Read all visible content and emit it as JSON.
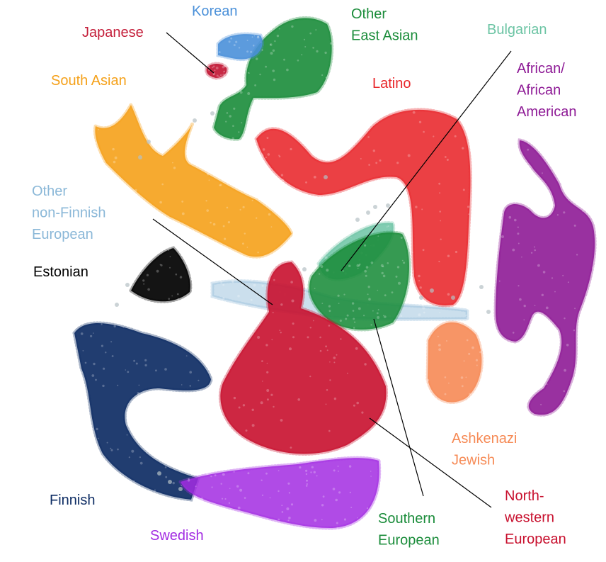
{
  "chart_data": {
    "type": "scatter",
    "title": "",
    "xlabel": "",
    "ylabel": "",
    "axes": "none",
    "grid": false,
    "legend": "none",
    "series": [
      {
        "name": "Korean",
        "lines": [
          "Korean"
        ],
        "color": "#4a90d9"
      },
      {
        "name": "Japanese",
        "lines": [
          "Japanese"
        ],
        "color": "#c41e3a"
      },
      {
        "name": "Other East Asian",
        "lines": [
          "Other",
          "East Asian"
        ],
        "color": "#1a8c3a"
      },
      {
        "name": "Bulgarian",
        "lines": [
          "Bulgarian"
        ],
        "color": "#6cc4a4"
      },
      {
        "name": "South Asian",
        "lines": [
          "South Asian"
        ],
        "color": "#f5a11a"
      },
      {
        "name": "Latino",
        "lines": [
          "Latino"
        ],
        "color": "#e8262a"
      },
      {
        "name": "African/ African American",
        "lines": [
          "African/",
          "African",
          "American"
        ],
        "color": "#8e1b96"
      },
      {
        "name": "Other non-Finnish European",
        "lines": [
          "Other",
          "non-Finnish",
          "European"
        ],
        "color": "#8bb8d8"
      },
      {
        "name": "Estonian",
        "lines": [
          "Estonian"
        ],
        "color": "#000000"
      },
      {
        "name": "Ashkenazi Jewish",
        "lines": [
          "Ashkenazi",
          "Jewish"
        ],
        "color": "#f68a55"
      },
      {
        "name": "Finnish",
        "lines": [
          "Finnish"
        ],
        "color": "#0e2d64"
      },
      {
        "name": "Swedish",
        "lines": [
          "Swedish"
        ],
        "color": "#a22be2"
      },
      {
        "name": "Southern European",
        "lines": [
          "Southern",
          "European"
        ],
        "color": "#1a8c3a"
      },
      {
        "name": "North-western European",
        "lines": [
          "North-",
          "western",
          "European"
        ],
        "color": "#c8102e"
      }
    ]
  }
}
